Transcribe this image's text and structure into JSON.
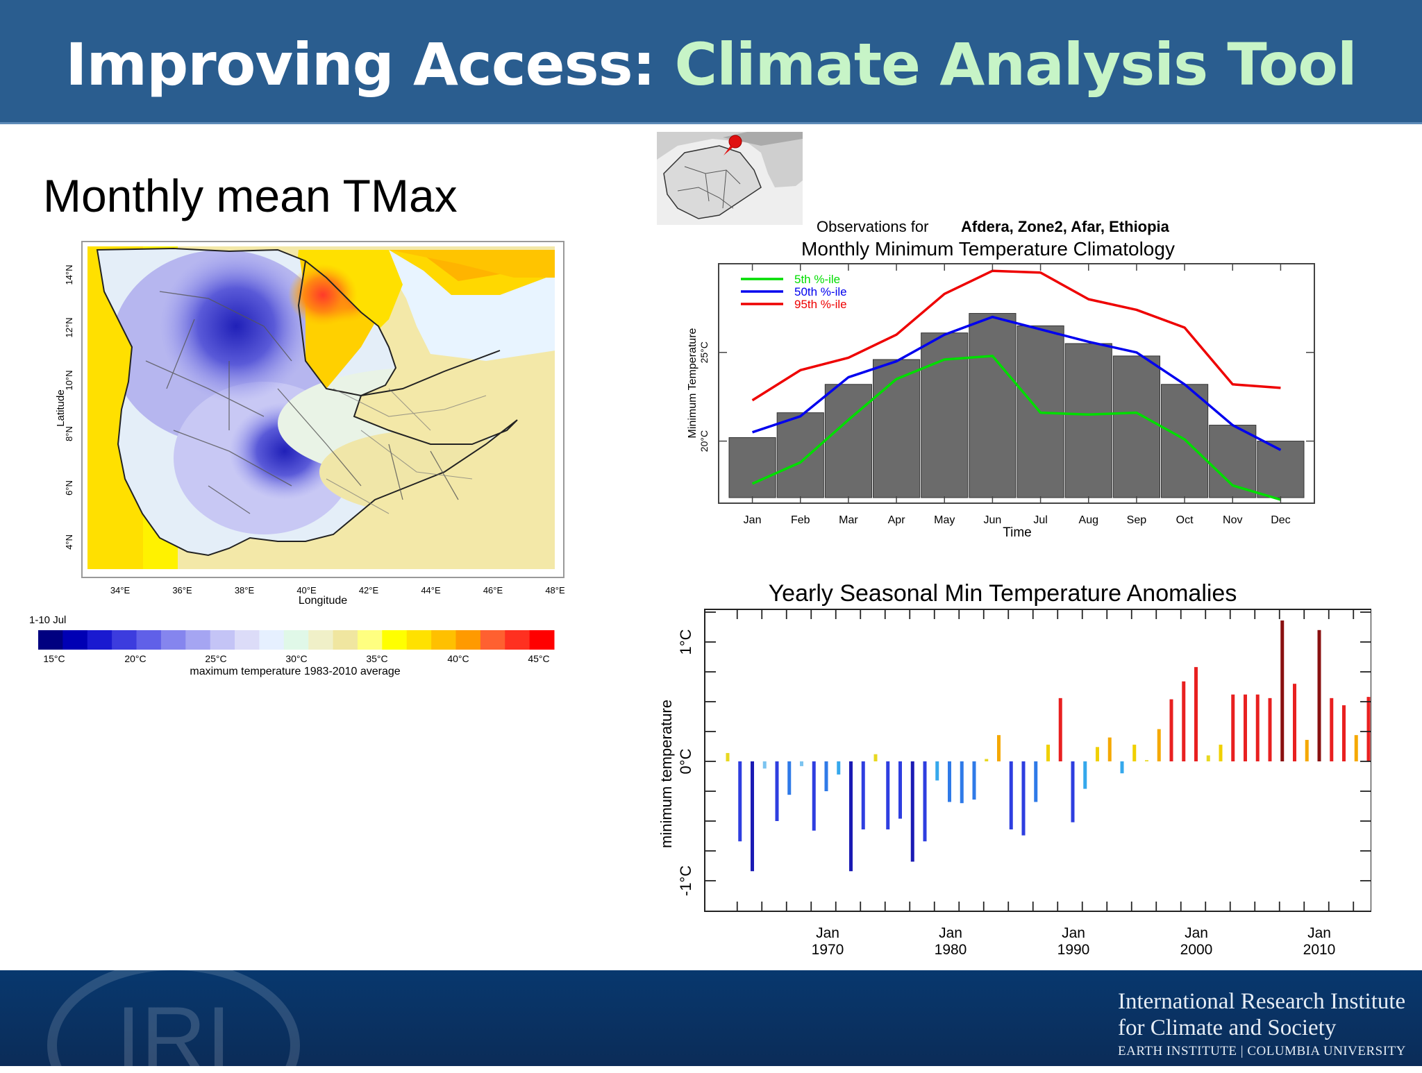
{
  "header": {
    "title_main": "Improving Access:",
    "title_accent": "Climate Analysis Tool",
    "bg_color": "#2a5d8f",
    "accent_color": "#c7f4c7"
  },
  "left_panel": {
    "heading": "Monthly mean TMax",
    "map": {
      "ylabel": "Latitude",
      "xlabel": "Longitude",
      "lat_ticks": [
        "14°N",
        "12°N",
        "10°N",
        "8°N",
        "6°N",
        "4°N"
      ],
      "lon_ticks": [
        "34°E",
        "36°E",
        "38°E",
        "40°E",
        "42°E",
        "44°E",
        "46°E",
        "48°E"
      ]
    },
    "colorbar": {
      "period_label": "1-10 Jul",
      "ticks": [
        "15°C",
        "20°C",
        "25°C",
        "30°C",
        "35°C",
        "40°C",
        "45°C"
      ],
      "caption": "maximum temperature 1983-2010 average",
      "colors": [
        "#000080",
        "#0000b4",
        "#1a1ad0",
        "#3c3cde",
        "#6060e8",
        "#8585ee",
        "#a5a5f2",
        "#c4c4f6",
        "#dcdcf8",
        "#e6f0ff",
        "#e0f8e8",
        "#f0f0c8",
        "#f0e6a0",
        "#ffff80",
        "#ffff00",
        "#ffe100",
        "#ffc000",
        "#ff9a00",
        "#ff6030",
        "#ff3020",
        "#ff0000"
      ]
    }
  },
  "inset_map": {
    "marker": "location-pin"
  },
  "climatology_chart": {
    "observations_prefix": "Observations for",
    "observations_location": "Afdera, Zone2, Afar, Ethiopia",
    "title": "Monthly Minimum Temperature Climatology",
    "ylabel": "Minimum Temperature",
    "xlabel": "Time",
    "ytick_labels": [
      "20°C",
      "25°C"
    ],
    "legend": [
      "5th %-ile",
      "50th %-ile",
      "95th %-ile"
    ]
  },
  "anomaly_chart": {
    "title": "Yearly Seasonal Min Temperature Anomalies",
    "ylabel": "minimum temperature",
    "ytick_labels": [
      "1°C",
      "0°C",
      "-1°C"
    ],
    "xtick_top": [
      "Jan",
      "Jan",
      "Jan",
      "Jan",
      "Jan"
    ],
    "xtick_bottom": [
      "1970",
      "1980",
      "1990",
      "2000",
      "2010"
    ]
  },
  "chart_data": [
    {
      "type": "bar",
      "title": "Monthly Minimum Temperature Climatology",
      "xlabel": "Time",
      "ylabel": "Minimum Temperature",
      "ylim": [
        16.5,
        30
      ],
      "categories": [
        "Jan",
        "Feb",
        "Mar",
        "Apr",
        "May",
        "Jun",
        "Jul",
        "Aug",
        "Sep",
        "Oct",
        "Nov",
        "Dec"
      ],
      "values": [
        20.2,
        21.6,
        23.2,
        24.6,
        26.1,
        27.2,
        26.5,
        25.5,
        24.8,
        23.2,
        20.9,
        20.0
      ],
      "bar_color": "#6b6b6b",
      "series": [
        {
          "name": "5th %-ile",
          "color": "#00dd00",
          "values": [
            17.6,
            18.8,
            21.2,
            23.5,
            24.6,
            24.8,
            21.6,
            21.5,
            21.6,
            20.1,
            17.5,
            16.7
          ]
        },
        {
          "name": "50th %-ile",
          "color": "#0000ee",
          "values": [
            20.5,
            21.4,
            23.6,
            24.5,
            26.0,
            27.0,
            26.3,
            25.6,
            25.0,
            23.2,
            20.9,
            19.5
          ]
        },
        {
          "name": "95th %-ile",
          "color": "#ee0000",
          "values": [
            22.3,
            24.0,
            24.7,
            26.0,
            28.3,
            29.6,
            29.5,
            28.0,
            27.4,
            26.4,
            23.2,
            23.0
          ]
        }
      ],
      "grid": false
    },
    {
      "type": "bar",
      "title": "Yearly Seasonal Min Temperature Anomalies",
      "ylabel": "minimum temperature",
      "ylim": [
        -1.25,
        1.25
      ],
      "x": [
        1961,
        1962,
        1963,
        1964,
        1965,
        1966,
        1967,
        1968,
        1969,
        1970,
        1971,
        1972,
        1973,
        1974,
        1975,
        1976,
        1977,
        1978,
        1979,
        1980,
        1981,
        1982,
        1983,
        1984,
        1985,
        1986,
        1987,
        1988,
        1989,
        1990,
        1991,
        1992,
        1993,
        1994,
        1995,
        1996,
        1997,
        1998,
        1999,
        2000,
        2001,
        2002,
        2003,
        2004,
        2005,
        2006,
        2007,
        2008,
        2009,
        2010,
        2011,
        2012,
        2013
      ],
      "values": [
        0.07,
        -0.67,
        -0.92,
        -0.06,
        -0.5,
        -0.28,
        -0.04,
        -0.58,
        -0.25,
        -0.11,
        -0.92,
        -0.57,
        0.06,
        -0.57,
        -0.48,
        -0.84,
        -0.67,
        -0.16,
        -0.34,
        -0.35,
        -0.32,
        0.02,
        0.22,
        -0.57,
        -0.62,
        -0.34,
        0.14,
        0.53,
        -0.51,
        -0.23,
        0.12,
        0.2,
        -0.1,
        0.14,
        0.01,
        0.27,
        0.52,
        0.67,
        0.79,
        0.05,
        0.14,
        0.56,
        0.56,
        0.56,
        0.53,
        1.18,
        0.65,
        0.18,
        1.1,
        0.53,
        0.47,
        0.22,
        0.54
      ],
      "grid": false
    }
  ]
}
